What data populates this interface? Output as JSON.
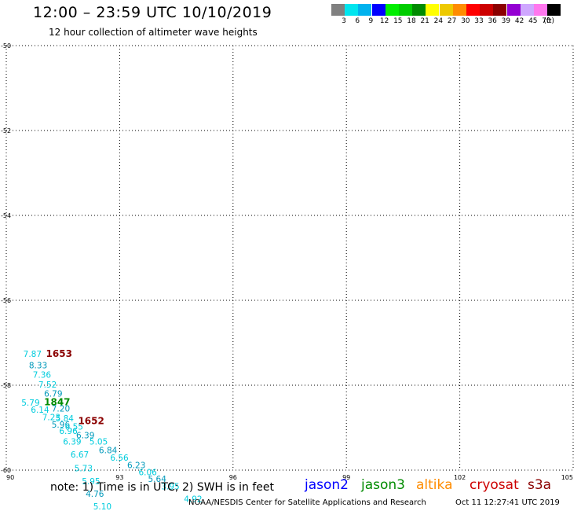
{
  "header": {
    "title": "12:00 – 23:59 UTC 10/10/2019",
    "subtitle": "12 hour collection of altimeter wave heights"
  },
  "legend": {
    "unit": "(ft)",
    "items": [
      {
        "label": "3",
        "color": "#808080"
      },
      {
        "label": "6",
        "color": "#00e5ee"
      },
      {
        "label": "9",
        "color": "#00b2ee"
      },
      {
        "label": "12",
        "color": "#0000ff"
      },
      {
        "label": "15",
        "color": "#00ee00"
      },
      {
        "label": "18",
        "color": "#00cd00"
      },
      {
        "label": "21",
        "color": "#008b00"
      },
      {
        "label": "24",
        "color": "#ffff00"
      },
      {
        "label": "27",
        "color": "#eec900"
      },
      {
        "label": "30",
        "color": "#ff8c00"
      },
      {
        "label": "33",
        "color": "#ff0000"
      },
      {
        "label": "36",
        "color": "#cd0000"
      },
      {
        "label": "39",
        "color": "#8b0000"
      },
      {
        "label": "42",
        "color": "#9400d3"
      },
      {
        "label": "45",
        "color": "#cfa7ff"
      },
      {
        "label": "70",
        "color": "#ff77ee"
      },
      {
        "label": "",
        "color": "#000000"
      }
    ]
  },
  "chart_data": {
    "type": "scatter",
    "xlim": [
      90,
      105
    ],
    "ylim": [
      -60,
      -50
    ],
    "x_ticks": [
      "90",
      "93",
      "96",
      "99",
      "102",
      "105"
    ],
    "y_ticks": [
      "-50",
      "-52",
      "-54",
      "-56",
      "-58",
      "-60"
    ],
    "grid": true,
    "wave_color": "#00ccdd",
    "wave_dark_color": "#0099bb",
    "time_color_red": "#8b0000",
    "time_color_green": "#008b00",
    "wave_heights": [
      {
        "lon": 90.45,
        "lat": -57.33,
        "value": "7.87"
      },
      {
        "lon": 90.6,
        "lat": -57.6,
        "value": "8.33"
      },
      {
        "lon": 90.7,
        "lat": -57.82,
        "value": "7.36"
      },
      {
        "lon": 90.85,
        "lat": -58.06,
        "value": "7.52"
      },
      {
        "lon": 91.0,
        "lat": -58.27,
        "value": "6.79"
      },
      {
        "lon": 90.4,
        "lat": -58.48,
        "value": "5.79"
      },
      {
        "lon": 90.65,
        "lat": -58.65,
        "value": "6.14"
      },
      {
        "lon": 91.2,
        "lat": -58.62,
        "value": "7.20"
      },
      {
        "lon": 90.95,
        "lat": -58.82,
        "value": "7.23"
      },
      {
        "lon": 91.3,
        "lat": -58.85,
        "value": "5.84"
      },
      {
        "lon": 91.2,
        "lat": -59.0,
        "value": "5.96"
      },
      {
        "lon": 91.55,
        "lat": -59.05,
        "value": "6.55"
      },
      {
        "lon": 91.4,
        "lat": -59.15,
        "value": "6.96"
      },
      {
        "lon": 91.85,
        "lat": -59.25,
        "value": "6.39"
      },
      {
        "lon": 91.5,
        "lat": -59.4,
        "value": "6.39"
      },
      {
        "lon": 92.2,
        "lat": -59.4,
        "value": "5.05"
      },
      {
        "lon": 92.45,
        "lat": -59.6,
        "value": "6.84"
      },
      {
        "lon": 91.7,
        "lat": -59.7,
        "value": "6.67"
      },
      {
        "lon": 92.75,
        "lat": -59.78,
        "value": "6.56"
      },
      {
        "lon": 93.2,
        "lat": -59.95,
        "value": "6.23"
      },
      {
        "lon": 91.8,
        "lat": -60.03,
        "value": "5.73"
      },
      {
        "lon": 93.5,
        "lat": -60.12,
        "value": "6.06"
      },
      {
        "lon": 93.75,
        "lat": -60.28,
        "value": "5.64"
      },
      {
        "lon": 92.0,
        "lat": -60.33,
        "value": "5.95"
      },
      {
        "lon": 94.1,
        "lat": -60.45,
        "value": "3.95"
      },
      {
        "lon": 92.1,
        "lat": -60.63,
        "value": "4.76"
      },
      {
        "lon": 94.7,
        "lat": -60.75,
        "value": "4.92"
      },
      {
        "lon": 92.3,
        "lat": -60.93,
        "value": "5.10"
      }
    ],
    "pass_times": [
      {
        "lon": 91.05,
        "lat": -57.33,
        "value": "1653",
        "sat": "s3a"
      },
      {
        "lon": 91.0,
        "lat": -58.47,
        "value": "1847",
        "sat": "jason3"
      },
      {
        "lon": 91.9,
        "lat": -58.92,
        "value": "1652",
        "sat": "s3a"
      }
    ]
  },
  "footer": {
    "note": "note: 1) Time is in UTC; 2) SWH is in feet",
    "satellites": [
      {
        "name": "jason2",
        "color": "#0000ff"
      },
      {
        "name": "jason3",
        "color": "#008b00"
      },
      {
        "name": "altika",
        "color": "#ff8c00"
      },
      {
        "name": "cryosat",
        "color": "#cd0000"
      },
      {
        "name": "s3a",
        "color": "#8b0000"
      }
    ],
    "credit": "NOAA/NESDIS Center for Satellite Applications and Research",
    "timestamp": "Oct 11 12:27:41 UTC 2019"
  }
}
